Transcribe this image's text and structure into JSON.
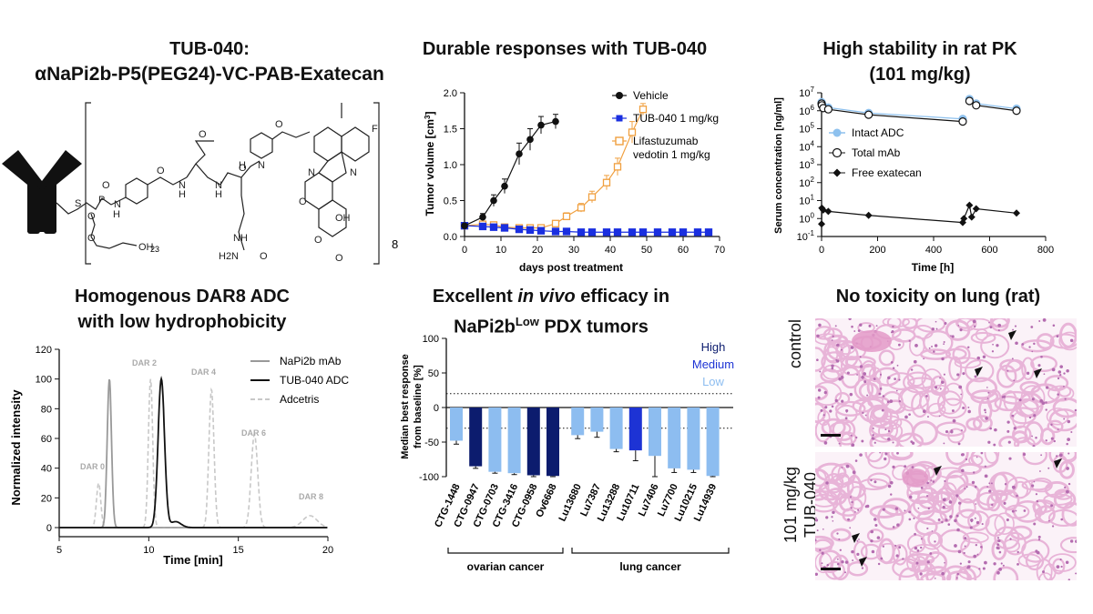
{
  "panels": {
    "structure": {
      "title_line1": "TUB-040:",
      "title_line2": "αNaPi2b-P5(PEG24)-VC-PAB-Exatecan",
      "subscript_23": "23",
      "subscript_8": "8",
      "atom_labels": [
        "S",
        "P",
        "O",
        "O",
        "N",
        "H",
        "OH",
        "O",
        "O",
        "N",
        "H",
        "N",
        "H",
        "O",
        "N",
        "H",
        "O",
        "NH",
        "H2N",
        "O",
        "N",
        "N",
        "O",
        "O",
        "OH",
        "F",
        "O",
        "O"
      ]
    },
    "tumor": {
      "title": "Durable responses with TUB-040",
      "ylabel_main": "Tumor volume [cm",
      "ylabel_sup": "3",
      "ylabel_end": "]",
      "xlabel": "days post treatment",
      "legend": [
        "Vehicle",
        "TUB-040 1 mg/kg",
        "Lifastuzumab",
        "vedotin 1 mg/kg"
      ]
    },
    "pk": {
      "title_line1": "High stability in rat PK",
      "title_line2": "(101 mg/kg)",
      "ylabel": "Serum concentration [ng/ml]",
      "xlabel": "Time [h]",
      "legend": [
        "Intact ADC",
        "Total mAb",
        "Free exatecan"
      ]
    },
    "hic": {
      "title_line1": "Homogenous DAR8 ADC",
      "title_line2": "with low hydrophobicity",
      "ylabel": "Normalized intensity",
      "xlabel": "Time [min]",
      "legend": [
        "NaPi2b mAb",
        "TUB-040 ADC",
        "Adcetris"
      ],
      "dar_labels": [
        "DAR 0",
        "DAR 2",
        "DAR 4",
        "DAR 6",
        "DAR 8"
      ]
    },
    "pdx": {
      "title_line1_a": "Excellent ",
      "title_line1_b": "in vivo",
      "title_line1_c": " efficacy in",
      "title_line2_a": "NaPi2b",
      "title_line2_sup": "Low",
      "title_line2_b": " PDX tumors",
      "ylabel_line1": "Median best response",
      "ylabel_line2": "from baseline [%]",
      "legend": [
        "High",
        "Medium",
        "Low"
      ],
      "group_labels": [
        "ovarian cancer",
        "lung cancer"
      ]
    },
    "lung": {
      "title": "No toxicity on lung (rat)",
      "label_control": "control",
      "label_treated_line1": "101 mg/kg",
      "label_treated_line2": "TUB-040"
    }
  },
  "colors": {
    "vehicle": "#111111",
    "tub040": "#1a2fe0",
    "lifastuzumab": "#f0a040",
    "intact_adc": "#8ec1ee",
    "high": "#0c1c6e",
    "medium": "#1d33d4",
    "low": "#8dbdf0",
    "tissue_pink": "#e8b4d8",
    "tissue_purple": "#b46cb0",
    "napi2b_mab": "#999999",
    "adcetris": "#c8c8c8"
  },
  "chart_data": [
    {
      "type": "line",
      "title": "Durable responses with TUB-040",
      "xlabel": "days post treatment",
      "ylabel": "Tumor volume [cm3]",
      "xlim": [
        0,
        70
      ],
      "ylim": [
        0,
        2.0
      ],
      "xticks": [
        0,
        10,
        20,
        30,
        40,
        50,
        60,
        70
      ],
      "yticks": [
        0.0,
        0.5,
        1.0,
        1.5,
        2.0
      ],
      "series": [
        {
          "name": "Vehicle",
          "x": [
            0,
            5,
            8,
            11,
            15,
            18,
            21,
            25
          ],
          "y": [
            0.15,
            0.27,
            0.5,
            0.7,
            1.15,
            1.35,
            1.55,
            1.6
          ],
          "err": [
            0.02,
            0.05,
            0.08,
            0.1,
            0.15,
            0.15,
            0.12,
            0.1
          ]
        },
        {
          "name": "TUB-040 1 mg/kg",
          "x": [
            0,
            5,
            8,
            11,
            15,
            18,
            21,
            25,
            28,
            32,
            35,
            39,
            42,
            46,
            49,
            53,
            57,
            60,
            64,
            67
          ],
          "y": [
            0.15,
            0.14,
            0.13,
            0.12,
            0.1,
            0.09,
            0.08,
            0.07,
            0.07,
            0.06,
            0.06,
            0.06,
            0.06,
            0.06,
            0.06,
            0.06,
            0.06,
            0.06,
            0.06,
            0.06
          ],
          "err": [
            0.02,
            0.02,
            0.02,
            0.02,
            0.02,
            0.01,
            0.01,
            0.01,
            0.01,
            0.01,
            0.01,
            0.01,
            0.01,
            0.01,
            0.01,
            0.01,
            0.01,
            0.01,
            0.01,
            0.01
          ]
        },
        {
          "name": "Lifastuzumab vedotin 1 mg/kg",
          "x": [
            0,
            5,
            8,
            11,
            15,
            18,
            21,
            25,
            28,
            32,
            35,
            39,
            42,
            46,
            49
          ],
          "y": [
            0.15,
            0.17,
            0.16,
            0.13,
            0.12,
            0.12,
            0.12,
            0.18,
            0.28,
            0.4,
            0.55,
            0.75,
            0.97,
            1.45,
            1.77
          ],
          "err": [
            0.02,
            0.02,
            0.02,
            0.02,
            0.02,
            0.02,
            0.03,
            0.04,
            0.05,
            0.06,
            0.08,
            0.1,
            0.12,
            0.15,
            0.08
          ]
        }
      ]
    },
    {
      "type": "line",
      "title": "High stability in rat PK (101 mg/kg)",
      "xlabel": "Time [h]",
      "ylabel": "Serum concentration [ng/ml]",
      "yscale": "log",
      "xlim": [
        0,
        800
      ],
      "ylim": [
        0.1,
        10000000
      ],
      "xticks": [
        0,
        200,
        400,
        600,
        800
      ],
      "yticks": [
        "10^-1",
        "10^0",
        "10^1",
        "10^2",
        "10^3",
        "10^4",
        "10^5",
        "10^6",
        "10^7"
      ],
      "series": [
        {
          "name": "Intact ADC",
          "x": [
            0.1,
            1,
            6,
            24,
            168,
            504,
            528,
            552,
            696
          ],
          "y": [
            3000000,
            2500000,
            1800000,
            1500000,
            750000,
            350000,
            4500000,
            2500000,
            1300000
          ]
        },
        {
          "name": "Total mAb",
          "x": [
            0.1,
            1,
            6,
            24,
            168,
            504,
            528,
            552,
            696
          ],
          "y": [
            2500000,
            2000000,
            1400000,
            1200000,
            600000,
            250000,
            3500000,
            2000000,
            1000000
          ]
        },
        {
          "name": "Free exatecan",
          "x": [
            0.1,
            1,
            6,
            24,
            168,
            504,
            508,
            528,
            536,
            552,
            696
          ],
          "y": [
            0.5,
            3.8,
            3.0,
            2.5,
            1.5,
            0.6,
            1.0,
            5.5,
            1.2,
            3.5,
            2.0
          ]
        }
      ]
    },
    {
      "type": "line",
      "title": "Homogenous DAR8 ADC with low hydrophobicity",
      "xlabel": "Time [min]",
      "ylabel": "Normalized intensity",
      "xlim": [
        5,
        20
      ],
      "ylim": [
        0,
        120
      ],
      "xticks": [
        5,
        10,
        15,
        20
      ],
      "yticks": [
        0,
        20,
        40,
        60,
        80,
        100,
        120
      ],
      "series": [
        {
          "name": "NaPi2b mAb",
          "peaks": [
            {
              "center": 7.8,
              "height": 100,
              "width": 0.12
            }
          ]
        },
        {
          "name": "TUB-040 ADC",
          "peaks": [
            {
              "center": 10.7,
              "height": 100,
              "width": 0.18
            },
            {
              "center": 11.5,
              "height": 4,
              "width": 0.3
            }
          ]
        },
        {
          "name": "Adcetris",
          "peaks": [
            {
              "center": 7.2,
              "height": 30,
              "width": 0.12
            },
            {
              "center": 10.1,
              "height": 100,
              "width": 0.12
            },
            {
              "center": 13.5,
              "height": 93,
              "width": 0.14
            },
            {
              "center": 15.9,
              "height": 63,
              "width": 0.18
            },
            {
              "center": 19.0,
              "height": 8,
              "width": 0.4
            }
          ]
        }
      ]
    },
    {
      "type": "bar",
      "title": "Excellent in vivo efficacy in NaPi2bLow PDX tumors",
      "ylabel": "Median best response from baseline [%]",
      "ylim": [
        -100,
        100
      ],
      "yticks": [
        100,
        50,
        0,
        -50,
        -100
      ],
      "reference_lines": [
        20,
        -30
      ],
      "categories": [
        "CTG-1448",
        "CTG-0947",
        "CTG-0703",
        "CTG-3416",
        "CTG-0958",
        "Ov6668",
        "Lu13680",
        "Lu7387",
        "Lu13288",
        "Lu10711",
        "Lu7406",
        "Lu7700",
        "Lu10215",
        "Lu14939"
      ],
      "values": [
        -48,
        -85,
        -93,
        -95,
        -98,
        -99,
        -40,
        -35,
        -60,
        -62,
        -70,
        -88,
        -90,
        -99
      ],
      "errors": [
        5,
        3,
        2,
        2,
        2,
        1,
        5,
        8,
        4,
        15,
        30,
        6,
        4,
        1
      ],
      "levels": [
        "Low",
        "High",
        "Low",
        "Low",
        "High",
        "High",
        "Low",
        "Low",
        "Low",
        "Medium",
        "Low",
        "Low",
        "Low",
        "Low"
      ],
      "groups": [
        {
          "name": "ovarian cancer",
          "range": [
            0,
            5
          ]
        },
        {
          "name": "lung cancer",
          "range": [
            6,
            13
          ]
        }
      ]
    }
  ]
}
